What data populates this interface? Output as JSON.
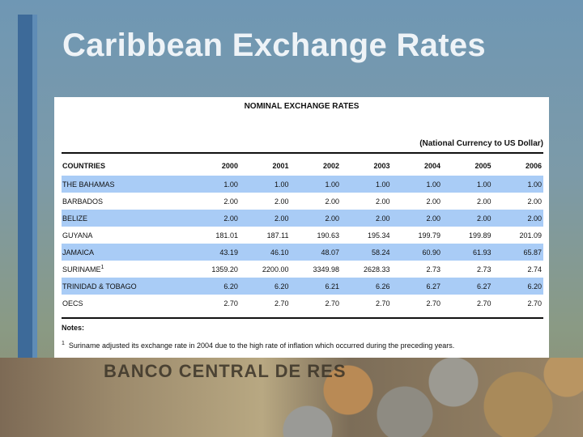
{
  "slide": {
    "title": "Caribbean Exchange Rates"
  },
  "table": {
    "caption": "NOMINAL EXCHANGE RATES",
    "units": "(National Currency to US Dollar)",
    "headers": [
      "COUNTRIES",
      "2000",
      "2001",
      "2002",
      "2003",
      "2004",
      "2005",
      "2006"
    ],
    "rows": [
      {
        "country": "THE BAHAMAS",
        "footnote": "",
        "values": [
          "1.00",
          "1.00",
          "1.00",
          "1.00",
          "1.00",
          "1.00",
          "1.00"
        ]
      },
      {
        "country": "BARBADOS",
        "footnote": "",
        "values": [
          "2.00",
          "2.00",
          "2.00",
          "2.00",
          "2.00",
          "2.00",
          "2.00"
        ]
      },
      {
        "country": "BELIZE",
        "footnote": "",
        "values": [
          "2.00",
          "2.00",
          "2.00",
          "2.00",
          "2.00",
          "2.00",
          "2.00"
        ]
      },
      {
        "country": "GUYANA",
        "footnote": "",
        "values": [
          "181.01",
          "187.11",
          "190.63",
          "195.34",
          "199.79",
          "199.89",
          "201.09"
        ]
      },
      {
        "country": "JAMAICA",
        "footnote": "",
        "values": [
          "43.19",
          "46.10",
          "48.07",
          "58.24",
          "60.90",
          "61.93",
          "65.87"
        ]
      },
      {
        "country": "SURINAME",
        "footnote": "1",
        "values": [
          "1359.20",
          "2200.00",
          "3349.98",
          "2628.33",
          "2.73",
          "2.73",
          "2.74"
        ]
      },
      {
        "country": "TRINIDAD & TOBAGO",
        "footnote": "",
        "values": [
          "6.20",
          "6.20",
          "6.21",
          "6.26",
          "6.27",
          "6.27",
          "6.20"
        ]
      },
      {
        "country": "OECS",
        "footnote": "",
        "values": [
          "2.70",
          "2.70",
          "2.70",
          "2.70",
          "2.70",
          "2.70",
          "2.70"
        ]
      }
    ],
    "notes_label": "Notes:",
    "note_marker": "1",
    "note_text": "Suriname adjusted its exchange rate in 2004 due to the high rate of inflation which occurred during the preceding years."
  },
  "background": {
    "banknote_text": "BANCO CENTRAL DE RES"
  },
  "colors": {
    "shade_row": "#a9ccf6",
    "title": "#eef3f7",
    "accent_bar": "#3d6a99"
  }
}
